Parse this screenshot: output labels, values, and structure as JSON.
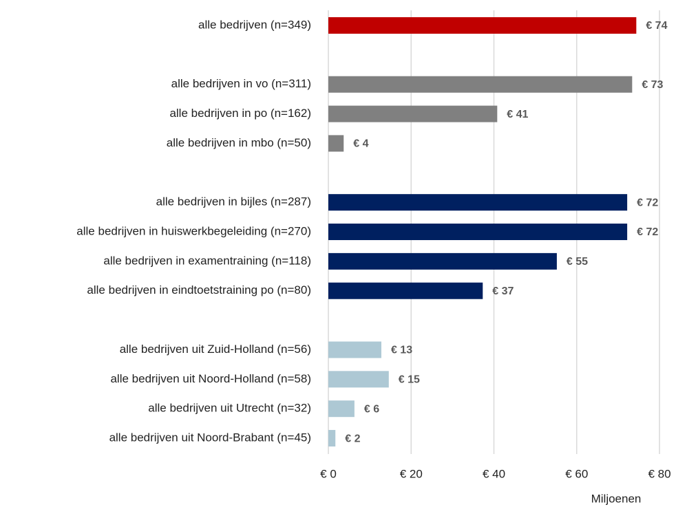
{
  "chart_data": {
    "type": "barh",
    "categories": [
      "alle bedrijven (n=349)",
      null,
      "alle bedrijven in vo (n=311)",
      "alle bedrijven in po (n=162)",
      "alle bedrijven in mbo (n=50)",
      null,
      "alle bedrijven in bijles (n=287)",
      "alle bedrijven in huiswerkbegeleiding (n=270)",
      "alle bedrijven in examentraining (n=118)",
      "alle bedrijven in eindtoetstraining po (n=80)",
      null,
      "alle bedrijven uit Zuid-Holland (n=56)",
      "alle bedrijven uit Noord-Holland (n=58)",
      "alle bedrijven uit Utrecht (n=32)",
      "alle bedrijven uit Noord-Brabant (n=45)"
    ],
    "values": [
      74.4,
      null,
      73.4,
      40.8,
      3.7,
      null,
      72.2,
      72.2,
      55.2,
      37.3,
      null,
      12.8,
      14.6,
      6.3,
      1.7
    ],
    "value_labels": [
      "€ 74",
      null,
      "€ 73",
      "€ 41",
      "€ 4",
      null,
      "€ 72",
      "€ 72",
      "€ 55",
      "€ 37",
      null,
      "€ 13",
      "€ 15",
      "€ 6",
      "€ 2"
    ],
    "colors": [
      "#c00000",
      null,
      "#808080",
      "#808080",
      "#808080",
      null,
      "#002060",
      "#002060",
      "#002060",
      "#002060",
      null,
      "#adc8d4",
      "#adc8d4",
      "#adc8d4",
      "#adc8d4"
    ],
    "xlim": [
      0,
      80
    ],
    "xticks": [
      {
        "value": 0,
        "label": "€ 0"
      },
      {
        "value": 20,
        "label": "€ 20"
      },
      {
        "value": 40,
        "label": "€ 40"
      },
      {
        "value": 60,
        "label": "€ 60"
      },
      {
        "value": 80,
        "label": "€ 80"
      }
    ],
    "xlabel": "Miljoenen",
    "grid": true
  }
}
